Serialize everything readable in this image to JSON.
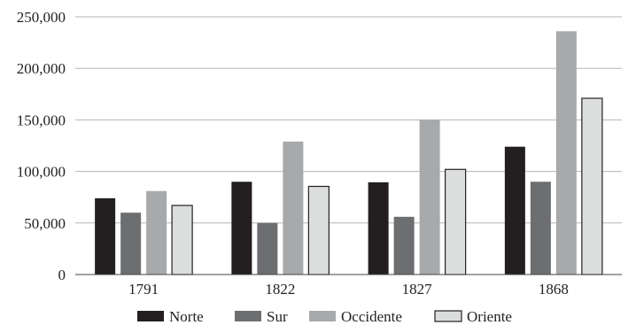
{
  "chart_data": {
    "type": "bar",
    "title": "",
    "xlabel": "",
    "ylabel": "",
    "categories": [
      "1791",
      "1822",
      "1827",
      "1868"
    ],
    "series": [
      {
        "name": "Norte",
        "values": [
          74000,
          90000,
          89500,
          124000
        ],
        "color": "#231f20"
      },
      {
        "name": "Sur",
        "values": [
          60000,
          50000,
          56000,
          90000
        ],
        "color": "#6d6e70"
      },
      {
        "name": "Occidente",
        "values": [
          81000,
          129000,
          150000,
          236000
        ],
        "color": "#a7a9ab"
      },
      {
        "name": "Oriente",
        "values": [
          67000,
          85500,
          102000,
          171000
        ],
        "color": "#dcdddd"
      }
    ],
    "ylim": [
      0,
      250000
    ],
    "yticks": [
      "0",
      "50,000",
      "100,000",
      "150,000",
      "200,000",
      "250,000"
    ],
    "grid": true,
    "legend_position": "bottom"
  }
}
